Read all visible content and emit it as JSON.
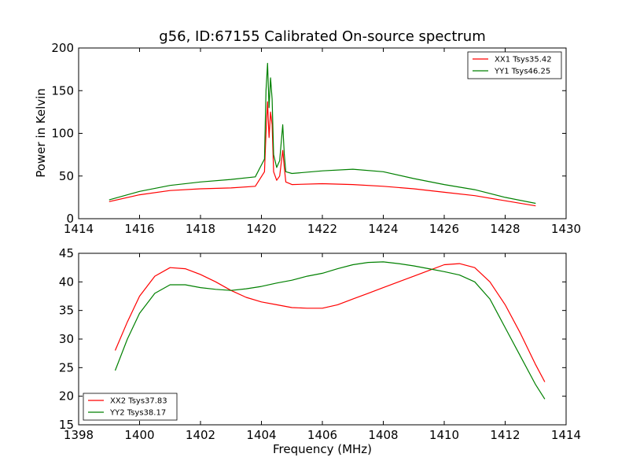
{
  "chart_data": [
    {
      "type": "line",
      "title": "g56, ID:67155 Calibrated On-source spectrum",
      "xlabel": "",
      "ylabel": "Power in Kelvin",
      "xlim": [
        1414,
        1430
      ],
      "ylim": [
        0,
        200
      ],
      "xticks": [
        1414,
        1416,
        1418,
        1420,
        1422,
        1424,
        1426,
        1428,
        1430
      ],
      "yticks": [
        0,
        50,
        100,
        150,
        200
      ],
      "legend_position": "top-right",
      "series": [
        {
          "name": "XX1 Tsys35.42",
          "color": "#ff0000",
          "x": [
            1415.0,
            1416.0,
            1417.0,
            1418.0,
            1419.0,
            1419.8,
            1420.1,
            1420.15,
            1420.2,
            1420.25,
            1420.3,
            1420.35,
            1420.4,
            1420.5,
            1420.6,
            1420.7,
            1420.75,
            1420.8,
            1421.0,
            1422.0,
            1423.0,
            1424.0,
            1425.0,
            1426.0,
            1427.0,
            1428.0,
            1429.0
          ],
          "y": [
            20,
            28,
            33,
            35,
            36,
            38,
            55,
            100,
            137,
            95,
            125,
            110,
            55,
            45,
            50,
            80,
            60,
            43,
            40,
            41,
            40,
            38,
            35,
            31,
            27,
            21,
            15
          ]
        },
        {
          "name": "YY1 Tsys46.25",
          "color": "#008000",
          "x": [
            1415.0,
            1416.0,
            1417.0,
            1418.0,
            1419.0,
            1419.8,
            1420.1,
            1420.15,
            1420.2,
            1420.25,
            1420.3,
            1420.35,
            1420.4,
            1420.5,
            1420.6,
            1420.7,
            1420.75,
            1420.8,
            1421.0,
            1422.0,
            1423.0,
            1424.0,
            1425.0,
            1426.0,
            1427.0,
            1428.0,
            1429.0
          ],
          "y": [
            22,
            32,
            39,
            43,
            46,
            49,
            70,
            150,
            182,
            130,
            165,
            140,
            75,
            60,
            68,
            110,
            75,
            55,
            53,
            56,
            58,
            55,
            47,
            40,
            34,
            25,
            18
          ]
        }
      ]
    },
    {
      "type": "line",
      "title": "",
      "xlabel": "Frequency (MHz)",
      "ylabel": "",
      "xlim": [
        1398,
        1414
      ],
      "ylim": [
        15,
        45
      ],
      "xticks": [
        1398,
        1400,
        1402,
        1404,
        1406,
        1408,
        1410,
        1412,
        1414
      ],
      "yticks": [
        15,
        20,
        25,
        30,
        35,
        40,
        45
      ],
      "legend_position": "bottom-left",
      "series": [
        {
          "name": "XX2 Tsys37.83",
          "color": "#ff0000",
          "x": [
            1399.2,
            1399.6,
            1400.0,
            1400.5,
            1401.0,
            1401.5,
            1402.0,
            1402.5,
            1403.0,
            1403.5,
            1404.0,
            1404.5,
            1405.0,
            1405.5,
            1406.0,
            1406.5,
            1407.0,
            1407.5,
            1408.0,
            1408.5,
            1409.0,
            1409.5,
            1410.0,
            1410.5,
            1411.0,
            1411.5,
            1412.0,
            1412.5,
            1413.0,
            1413.3
          ],
          "y": [
            28,
            33,
            37.5,
            41,
            42.5,
            42.3,
            41.3,
            40,
            38.5,
            37.3,
            36.5,
            36,
            35.5,
            35.4,
            35.4,
            36,
            37,
            38,
            39,
            40,
            41,
            42,
            43,
            43.2,
            42.5,
            40,
            36,
            31,
            25.5,
            22.5
          ]
        },
        {
          "name": "YY2 Tsys38.17",
          "color": "#008000",
          "x": [
            1399.2,
            1399.6,
            1400.0,
            1400.5,
            1401.0,
            1401.5,
            1402.0,
            1402.5,
            1403.0,
            1403.5,
            1404.0,
            1404.5,
            1405.0,
            1405.5,
            1406.0,
            1406.5,
            1407.0,
            1407.5,
            1408.0,
            1408.5,
            1409.0,
            1409.5,
            1410.0,
            1410.5,
            1411.0,
            1411.5,
            1412.0,
            1412.5,
            1413.0,
            1413.3
          ],
          "y": [
            24.5,
            30,
            34.5,
            38,
            39.5,
            39.5,
            39,
            38.7,
            38.5,
            38.8,
            39.2,
            39.8,
            40.3,
            41,
            41.5,
            42.3,
            43,
            43.4,
            43.5,
            43.2,
            42.8,
            42.3,
            41.8,
            41.2,
            40,
            37,
            32,
            27,
            22,
            19.5
          ]
        }
      ]
    }
  ]
}
